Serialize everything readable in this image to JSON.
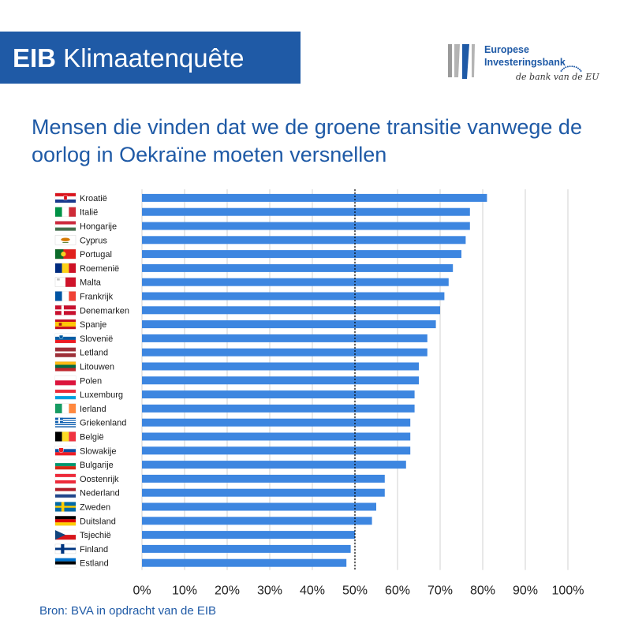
{
  "banner": {
    "strong": "EIB",
    "rest": " Klimaatenquête"
  },
  "logo": {
    "line1": "Europese",
    "line2": "Investeringsbank",
    "tagline": "de bank van de EU"
  },
  "title": "Mensen die vinden dat we de groene transitie vanwege de oorlog in Oekraïne moeten versnellen",
  "source": "Bron: BVA in opdracht van de EIB",
  "colors": {
    "brand": "#1f5aa6",
    "bar": "#3d86e0",
    "grid": "#d0d0d0",
    "reference": "#000000"
  },
  "chart_data": {
    "type": "bar",
    "orientation": "horizontal",
    "xlim": [
      0,
      100
    ],
    "xticks": [
      "0%",
      "10%",
      "20%",
      "30%",
      "40%",
      "50%",
      "60%",
      "70%",
      "80%",
      "90%",
      "100%"
    ],
    "reference_line": 50,
    "grid": true,
    "categories": [
      "Kroatië",
      "Italië",
      "Hongarije",
      "Cyprus",
      "Portugal",
      "Roemenië",
      "Malta",
      "Frankrijk",
      "Denemarken",
      "Spanje",
      "Slovenië",
      "Letland",
      "Litouwen",
      "Polen",
      "Luxemburg",
      "Ierland",
      "Griekenland",
      "België",
      "Slowakije",
      "Bulgarije",
      "Oostenrijk",
      "Nederland",
      "Zweden",
      "Duitsland",
      "Tsjechië",
      "Finland",
      "Estland"
    ],
    "flags": [
      "hr",
      "it",
      "hu",
      "cy",
      "pt",
      "ro",
      "mt",
      "fr",
      "dk",
      "es",
      "si",
      "lv",
      "lt",
      "pl",
      "lu",
      "ie",
      "gr",
      "be",
      "sk",
      "bg",
      "at",
      "nl",
      "se",
      "de",
      "cz",
      "fi",
      "ee"
    ],
    "values": [
      81,
      77,
      77,
      76,
      75,
      73,
      72,
      71,
      70,
      69,
      67,
      67,
      65,
      65,
      64,
      64,
      63,
      63,
      63,
      62,
      57,
      57,
      55,
      54,
      50,
      49,
      48
    ]
  }
}
